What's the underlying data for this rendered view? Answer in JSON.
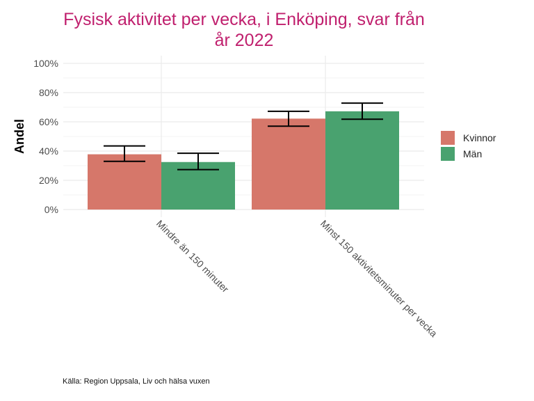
{
  "title": {
    "line1": "Fysisk aktivitet per vecka, i Enköping, svar från",
    "line2": "år 2022"
  },
  "caption": "Källa: Region Uppsala, Liv och hälsa vuxen",
  "colors": {
    "kvinnor": "#d6776a",
    "man": "#49a26f",
    "title": "#c0206e",
    "grid": "#ebebeb"
  },
  "chart_data": {
    "type": "bar",
    "title": "Fysisk aktivitet per vecka, i Enköping, svar från år 2022",
    "xlabel": "",
    "ylabel": "Andel",
    "ylim": [
      0,
      100
    ],
    "yticks": [
      "0%",
      "20%",
      "40%",
      "60%",
      "80%",
      "100%"
    ],
    "categories": [
      "Mindre än 150 minuter",
      "Minst 150 aktivitetsminuter per vecka"
    ],
    "series": [
      {
        "name": "Kvinnor",
        "color": "#d6776a",
        "values": [
          37.8,
          62.2
        ],
        "error_low": [
          33,
          57
        ],
        "error_high": [
          43.5,
          67.2
        ]
      },
      {
        "name": "Män",
        "color": "#49a26f",
        "values": [
          32.5,
          67.2
        ],
        "error_low": [
          27.3,
          61.8
        ],
        "error_high": [
          38.5,
          72.8
        ]
      }
    ],
    "legend_position": "right",
    "grid": true
  }
}
